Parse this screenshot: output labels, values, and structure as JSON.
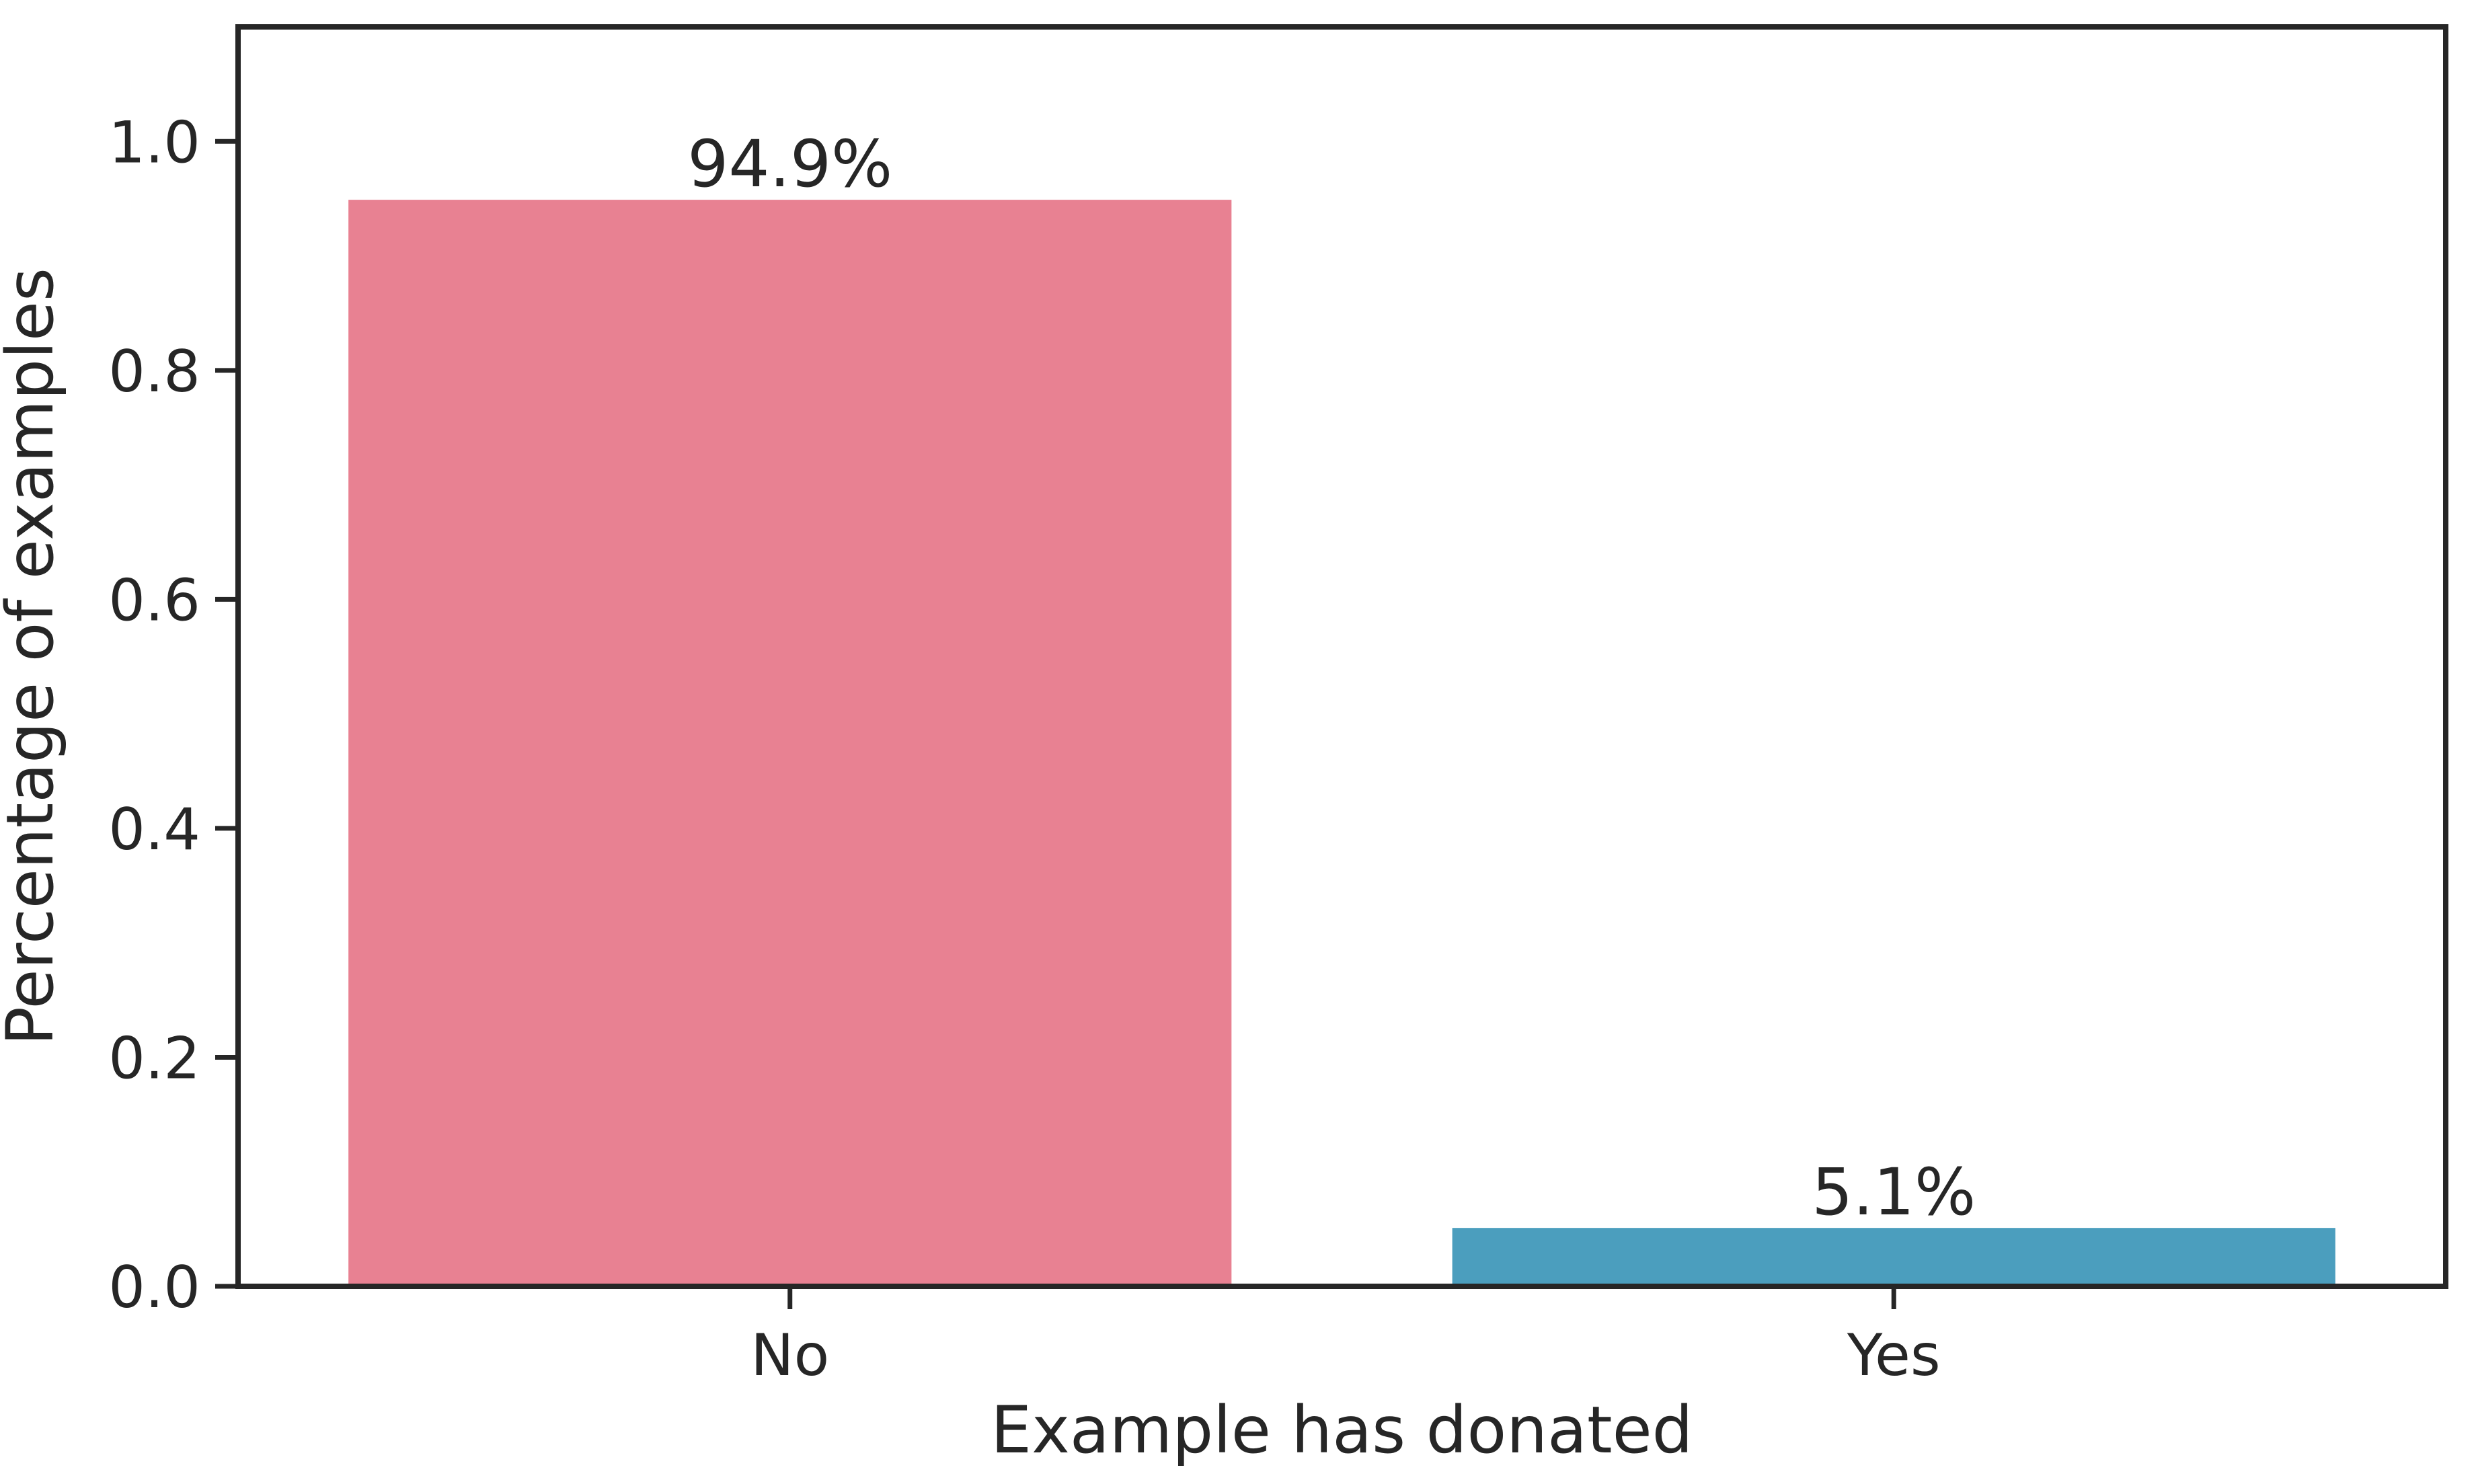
{
  "chart_data": {
    "type": "bar",
    "categories": [
      "No",
      "Yes"
    ],
    "values": [
      0.949,
      0.051
    ],
    "bar_labels": [
      "94.9%",
      "5.1%"
    ],
    "colors": [
      "#e88192",
      "#4b9ebe"
    ],
    "xlabel": "Example has donated",
    "ylabel": "Percentage of examples",
    "ylim": [
      0,
      1.1
    ],
    "yticks": [
      0.0,
      0.2,
      0.4,
      0.6,
      0.8,
      1.0
    ],
    "ytick_labels": [
      "0.0",
      "0.2",
      "0.4",
      "0.6",
      "0.8",
      "1.0"
    ],
    "grid": false,
    "axis_color": "#262626"
  }
}
